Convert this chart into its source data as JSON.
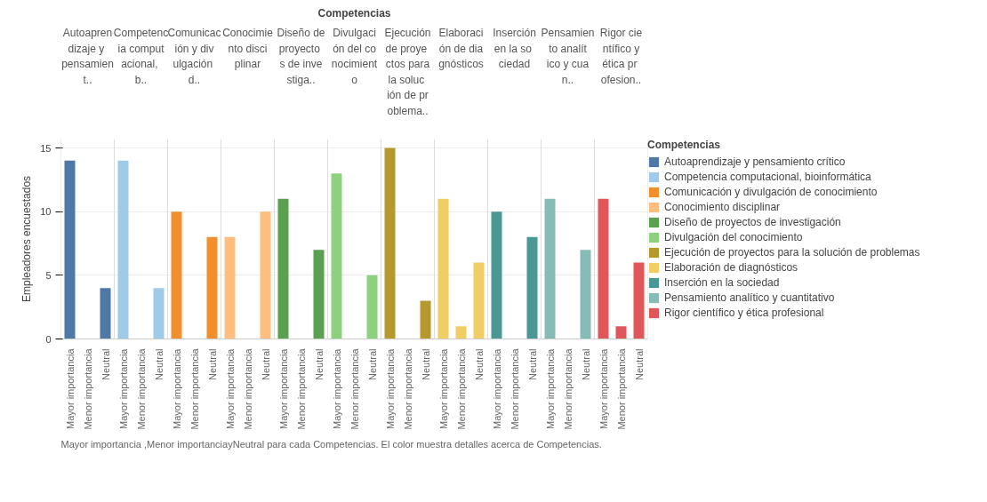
{
  "chart_data": {
    "type": "bar",
    "x2label": "Competencias",
    "ylabel": "Empleadores encuestados",
    "legend_title": "Competencias",
    "categories": [
      "Mayor importancia",
      "Menor importancia",
      "Neutral",
      "Mayor importancia",
      "Menor importancia",
      "Neutral",
      "Mayor importancia",
      "Menor importancia",
      "Neutral",
      "Mayor importancia",
      "Menor importancia",
      "Neutral",
      "Mayor importancia",
      "Menor importancia",
      "Neutral",
      "Mayor importancia",
      "Menor importancia",
      "Neutral",
      "Mayor importancia",
      "Menor importancia",
      "Neutral",
      "Mayor importancia",
      "Menor importancia",
      "Neutral",
      "Mayor importancia",
      "Menor importancia",
      "Neutral",
      "Mayor importancia",
      "Menor importancia",
      "Neutral",
      "Mayor importancia",
      "Menor importancia",
      "Neutral"
    ],
    "series": [
      {
        "name": "Autoaprendizaje y pensamiento crítico",
        "color": "#4e79a7",
        "values": [
          14,
          0,
          4,
          null,
          null,
          null,
          null,
          null,
          null,
          null,
          null,
          null,
          null,
          null,
          null,
          null,
          null,
          null,
          null,
          null,
          null,
          null,
          null,
          null,
          null,
          null,
          null,
          null,
          null,
          null,
          null,
          null,
          null
        ]
      },
      {
        "name": "Competencia computacional, bioinformática",
        "color": "#a0cbe8",
        "values": [
          null,
          null,
          null,
          14,
          0,
          4,
          null,
          null,
          null,
          null,
          null,
          null,
          null,
          null,
          null,
          null,
          null,
          null,
          null,
          null,
          null,
          null,
          null,
          null,
          null,
          null,
          null,
          null,
          null,
          null,
          null,
          null,
          null
        ]
      },
      {
        "name": "Comunicación y divulgación de conocimiento",
        "color": "#f28e2b",
        "values": [
          null,
          null,
          null,
          null,
          null,
          null,
          10,
          0,
          8,
          null,
          null,
          null,
          null,
          null,
          null,
          null,
          null,
          null,
          null,
          null,
          null,
          null,
          null,
          null,
          null,
          null,
          null,
          null,
          null,
          null,
          null,
          null,
          null
        ]
      },
      {
        "name": "Conocimiento disciplinar",
        "color": "#ffbe7d",
        "values": [
          null,
          null,
          null,
          null,
          null,
          null,
          null,
          null,
          null,
          8,
          0,
          10,
          null,
          null,
          null,
          null,
          null,
          null,
          null,
          null,
          null,
          null,
          null,
          null,
          null,
          null,
          null,
          null,
          null,
          null,
          null,
          null,
          null
        ]
      },
      {
        "name": "Diseño de proyectos de investigación",
        "color": "#59a14f",
        "values": [
          null,
          null,
          null,
          null,
          null,
          null,
          null,
          null,
          null,
          null,
          null,
          null,
          11,
          0,
          7,
          null,
          null,
          null,
          null,
          null,
          null,
          null,
          null,
          null,
          null,
          null,
          null,
          null,
          null,
          null,
          null,
          null,
          null
        ]
      },
      {
        "name": "Divulgación del conocimiento",
        "color": "#8cd17d",
        "values": [
          null,
          null,
          null,
          null,
          null,
          null,
          null,
          null,
          null,
          null,
          null,
          null,
          null,
          null,
          null,
          13,
          0,
          5,
          null,
          null,
          null,
          null,
          null,
          null,
          null,
          null,
          null,
          null,
          null,
          null,
          null,
          null,
          null
        ]
      },
      {
        "name": "Ejecución de proyectos para la solución de problemas",
        "color": "#b6992d",
        "values": [
          null,
          null,
          null,
          null,
          null,
          null,
          null,
          null,
          null,
          null,
          null,
          null,
          null,
          null,
          null,
          null,
          null,
          null,
          15,
          0,
          3,
          null,
          null,
          null,
          null,
          null,
          null,
          null,
          null,
          null,
          null,
          null,
          null
        ]
      },
      {
        "name": "Elaboración de diagnósticos",
        "color": "#f1ce63",
        "values": [
          null,
          null,
          null,
          null,
          null,
          null,
          null,
          null,
          null,
          null,
          null,
          null,
          null,
          null,
          null,
          null,
          null,
          null,
          null,
          null,
          null,
          11,
          1,
          6,
          null,
          null,
          null,
          null,
          null,
          null,
          null,
          null,
          null
        ]
      },
      {
        "name": "Inserción en la sociedad",
        "color": "#499894",
        "values": [
          null,
          null,
          null,
          null,
          null,
          null,
          null,
          null,
          null,
          null,
          null,
          null,
          null,
          null,
          null,
          null,
          null,
          null,
          null,
          null,
          null,
          null,
          null,
          null,
          10,
          0,
          8,
          null,
          null,
          null,
          null,
          null,
          null
        ]
      },
      {
        "name": "Pensamiento analítico y cuantitativo",
        "color": "#86bcb6",
        "values": [
          null,
          null,
          null,
          null,
          null,
          null,
          null,
          null,
          null,
          null,
          null,
          null,
          null,
          null,
          null,
          null,
          null,
          null,
          null,
          null,
          null,
          null,
          null,
          null,
          null,
          null,
          null,
          11,
          0,
          7,
          null,
          null,
          null
        ]
      },
      {
        "name": "Rigor científico y ética profesional",
        "color": "#e15759",
        "values": [
          null,
          null,
          null,
          null,
          null,
          null,
          null,
          null,
          null,
          null,
          null,
          null,
          null,
          null,
          null,
          null,
          null,
          null,
          null,
          null,
          null,
          null,
          null,
          null,
          null,
          null,
          null,
          null,
          null,
          null,
          11,
          1,
          6
        ]
      }
    ],
    "annotations": [
      "Autoaprendizaje y pensamient..",
      "Competencia computacional, b..",
      "Comunicación y divulgación d..",
      "Conocimiento disciplinar",
      "Diseño de proyectos de investiga..",
      "Divulgación del conocimiento",
      "Ejecución de proyectos para la solución de problema..",
      "Elaboración de diagnósticos",
      "Inserción en la sociedad",
      "Pensamiento analítico y cuan..",
      "Rigor científico y ética profesion..",
      "Mayor importancia ,Menor importanciayNeutral para cada Competencias. El color muestra detalles acerca de Competencias."
    ],
    "ylim": [
      0,
      15.7
    ],
    "yticks": [
      0,
      5,
      10,
      15
    ],
    "grid": "y",
    "legend": "right"
  }
}
